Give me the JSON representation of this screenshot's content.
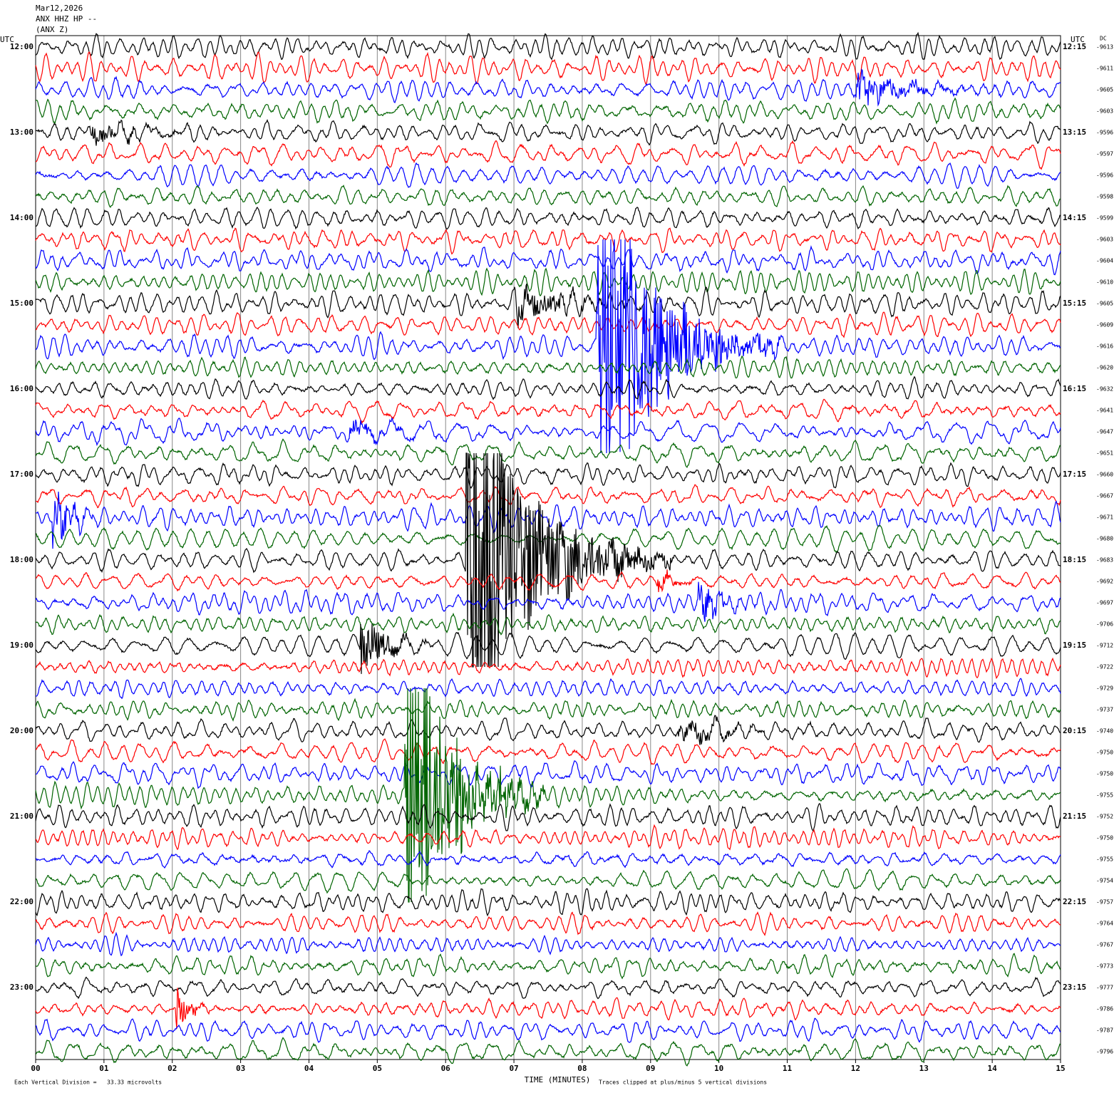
{
  "chart_data": {
    "type": "helicorder",
    "title_lines": [
      "Mar12,2026",
      "ANX HHZ HP --",
      "(ANX Z)"
    ],
    "left_axis_label": "UTC",
    "right_axis_label": "UTC",
    "dc_label": "DC",
    "row_labels_left": [
      "12:00",
      "13:00",
      "14:00",
      "15:00",
      "16:00",
      "17:00",
      "18:00",
      "19:00",
      "20:00",
      "21:00",
      "22:00",
      "23:00"
    ],
    "row_labels_right": [
      "12:15",
      "13:15",
      "14:15",
      "15:15",
      "16:15",
      "17:15",
      "18:15",
      "19:15",
      "20:15",
      "21:15",
      "22:15",
      "23:15"
    ],
    "dc_values": [
      -9613,
      -9611,
      -9605,
      -9603,
      -9596,
      -9597,
      -9596,
      -9598,
      -9599,
      -9603,
      -9604,
      -9610,
      -9605,
      -9609,
      -9616,
      -9620,
      -9632,
      -9641,
      -9647,
      -9651,
      -9660,
      -9667,
      -9671,
      -9680,
      -9683,
      -9692,
      -9697,
      -9706,
      -9712,
      -9722,
      -9729,
      -9737,
      -9740,
      -9750,
      -9750,
      -9755,
      -9752,
      -9750,
      -9755,
      -9754,
      -9757,
      -9764,
      -9767,
      -9773,
      -9777,
      -9786,
      -9787,
      -9796
    ],
    "trace_colors": [
      "#000000",
      "#ff0000",
      "#0000ff",
      "#006400"
    ],
    "xlim": [
      0,
      15
    ],
    "xticks": [
      {
        "value": 0,
        "label": "00"
      },
      {
        "value": 1,
        "label": "01"
      },
      {
        "value": 2,
        "label": "02"
      },
      {
        "value": 3,
        "label": "03"
      },
      {
        "value": 4,
        "label": "04"
      },
      {
        "value": 5,
        "label": "05"
      },
      {
        "value": 6,
        "label": "06"
      },
      {
        "value": 7,
        "label": "07"
      },
      {
        "value": 8,
        "label": "08"
      },
      {
        "value": 9,
        "label": "09"
      },
      {
        "value": 10,
        "label": "10"
      },
      {
        "value": 11,
        "label": "11"
      },
      {
        "value": 12,
        "label": "12"
      },
      {
        "value": 13,
        "label": "13"
      },
      {
        "value": 14,
        "label": "14"
      },
      {
        "value": 15,
        "label": "15"
      }
    ],
    "xlabel": "TIME (MINUTES)",
    "scale_note": "Each Vertical Division =   33.33 microvolts",
    "clip_note": "Traces clipped at plus/minus 5 vertical divisions",
    "grid": true
  }
}
